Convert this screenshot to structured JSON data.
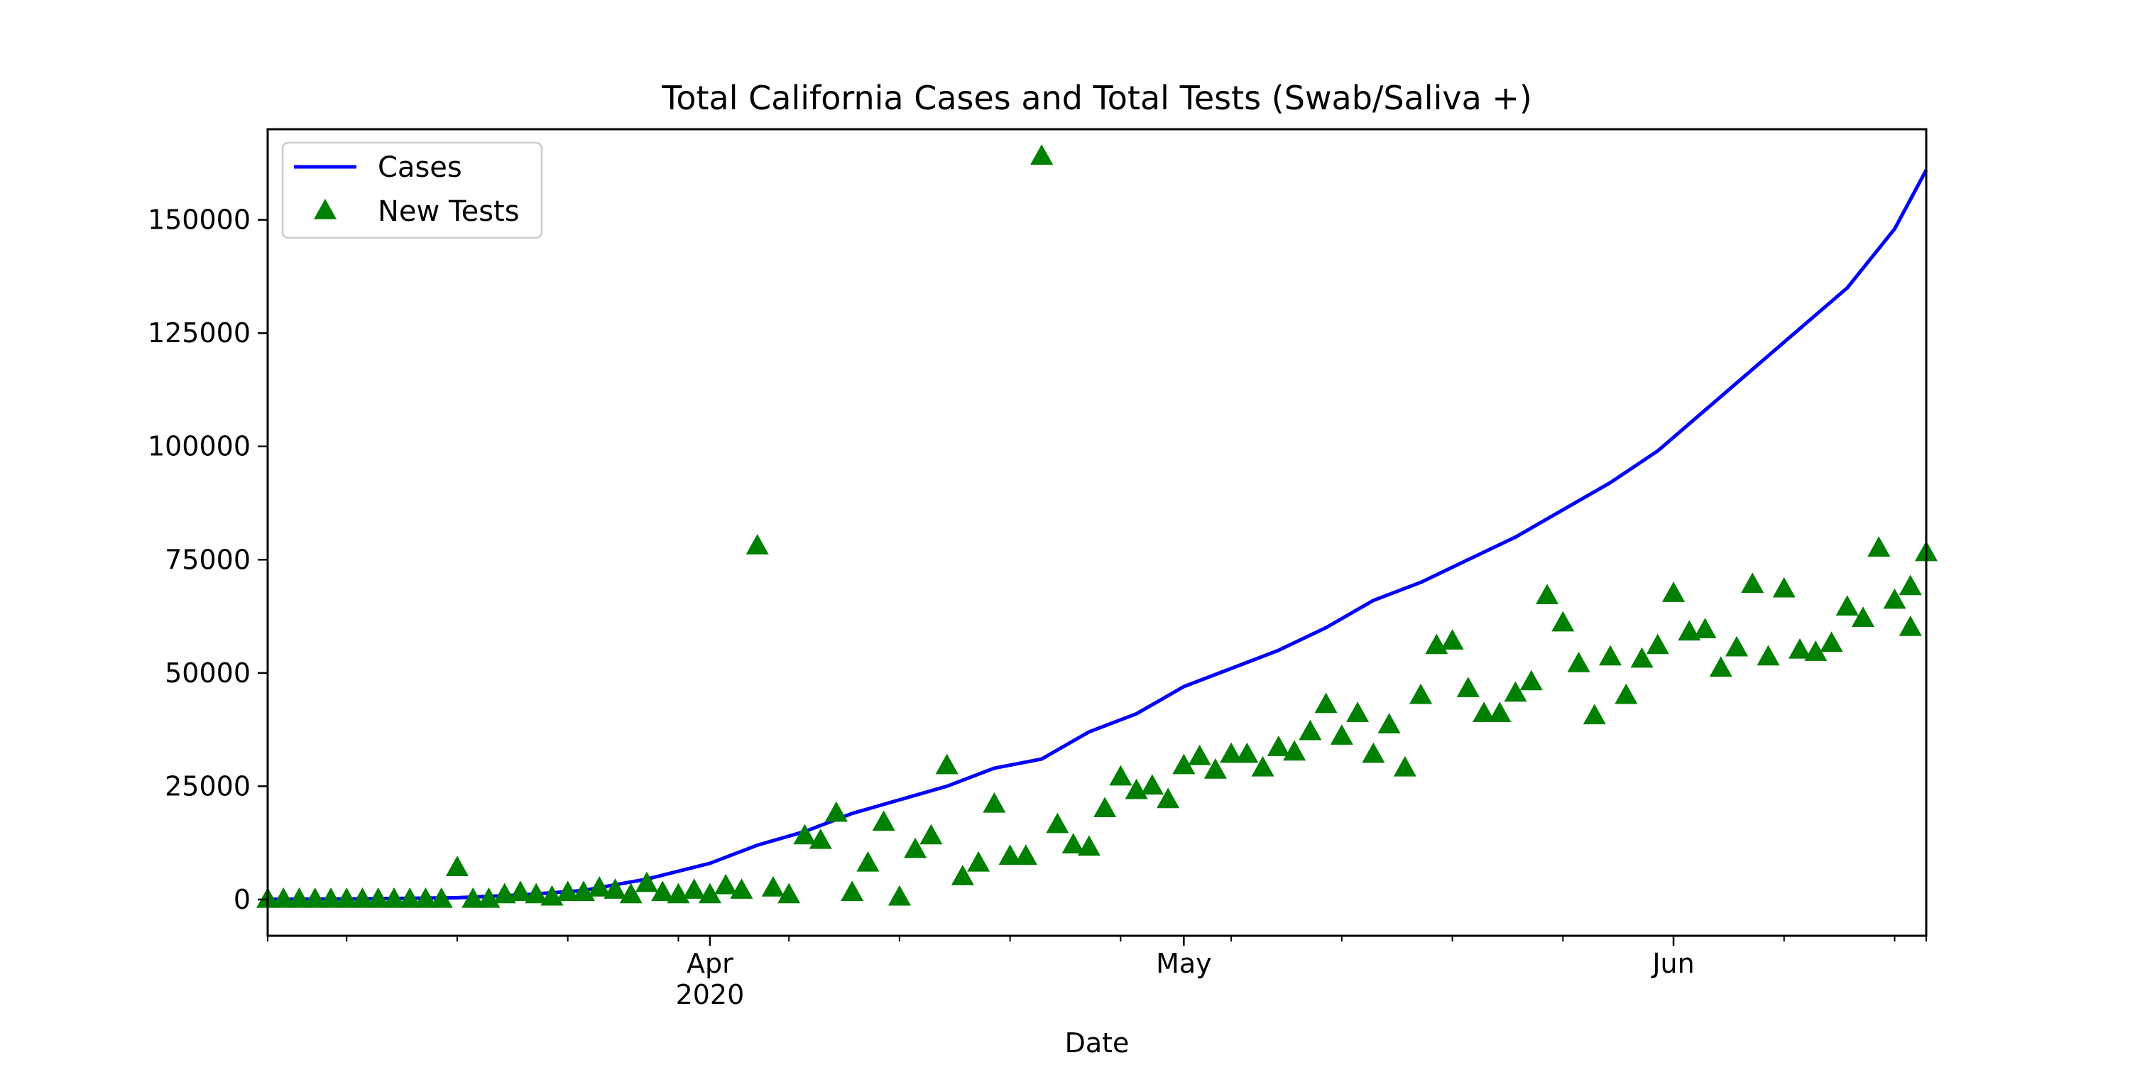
{
  "chart_data": {
    "type": "line",
    "title": "Total California Cases and Total Tests (Swab/Saliva +)",
    "xlabel": "Date",
    "ylabel": "",
    "x_start": "2020-03-04",
    "x_end": "2020-06-17",
    "xlim": [
      "2020-03-04",
      "2020-06-17"
    ],
    "ylim": [
      -8000,
      170000
    ],
    "yticks": [
      0,
      25000,
      50000,
      75000,
      100000,
      125000,
      150000
    ],
    "ytick_labels": [
      "0",
      "25000",
      "50000",
      "75000",
      "100000",
      "125000",
      "150000"
    ],
    "x_major_ticks": [
      {
        "date": "2020-04-01",
        "label": "Apr",
        "sublabel": "2020"
      },
      {
        "date": "2020-05-01",
        "label": "May",
        "sublabel": ""
      },
      {
        "date": "2020-06-01",
        "label": "Jun",
        "sublabel": ""
      }
    ],
    "x_minor_ticks": [
      "2020-03-04",
      "2020-03-09",
      "2020-03-16",
      "2020-03-23",
      "2020-03-30",
      "2020-04-06",
      "2020-04-13",
      "2020-04-20",
      "2020-04-27",
      "2020-05-04",
      "2020-05-11",
      "2020-05-18",
      "2020-05-25",
      "2020-06-08",
      "2020-06-15",
      "2020-06-17"
    ],
    "legend": {
      "position": "top-left"
    },
    "series": [
      {
        "name": "Cases",
        "style": "line",
        "color": "#0000ff",
        "points": [
          [
            "2020-03-04",
            50
          ],
          [
            "2020-03-10",
            150
          ],
          [
            "2020-03-16",
            400
          ],
          [
            "2020-03-20",
            1000
          ],
          [
            "2020-03-24",
            2000
          ],
          [
            "2020-03-28",
            4500
          ],
          [
            "2020-04-01",
            8000
          ],
          [
            "2020-04-04",
            12000
          ],
          [
            "2020-04-07",
            15000
          ],
          [
            "2020-04-10",
            19000
          ],
          [
            "2020-04-13",
            22000
          ],
          [
            "2020-04-16",
            25000
          ],
          [
            "2020-04-19",
            29000
          ],
          [
            "2020-04-22",
            31000
          ],
          [
            "2020-04-25",
            37000
          ],
          [
            "2020-04-28",
            41000
          ],
          [
            "2020-05-01",
            47000
          ],
          [
            "2020-05-04",
            51000
          ],
          [
            "2020-05-07",
            55000
          ],
          [
            "2020-05-10",
            60000
          ],
          [
            "2020-05-13",
            66000
          ],
          [
            "2020-05-16",
            70000
          ],
          [
            "2020-05-19",
            75000
          ],
          [
            "2020-05-22",
            80000
          ],
          [
            "2020-05-25",
            86000
          ],
          [
            "2020-05-28",
            92000
          ],
          [
            "2020-05-31",
            99000
          ],
          [
            "2020-06-03",
            108000
          ],
          [
            "2020-06-06",
            117000
          ],
          [
            "2020-06-09",
            126000
          ],
          [
            "2020-06-12",
            135000
          ],
          [
            "2020-06-15",
            148000
          ],
          [
            "2020-06-17",
            161000
          ]
        ]
      },
      {
        "name": "New Tests",
        "style": "marker",
        "marker": "triangle",
        "color": "#008000",
        "points": [
          [
            "2020-03-04",
            0
          ],
          [
            "2020-03-05",
            0
          ],
          [
            "2020-03-06",
            0
          ],
          [
            "2020-03-07",
            0
          ],
          [
            "2020-03-08",
            0
          ],
          [
            "2020-03-09",
            0
          ],
          [
            "2020-03-10",
            0
          ],
          [
            "2020-03-11",
            0
          ],
          [
            "2020-03-12",
            0
          ],
          [
            "2020-03-13",
            0
          ],
          [
            "2020-03-14",
            0
          ],
          [
            "2020-03-15",
            0
          ],
          [
            "2020-03-16",
            7000
          ],
          [
            "2020-03-17",
            0
          ],
          [
            "2020-03-18",
            0
          ],
          [
            "2020-03-19",
            1000
          ],
          [
            "2020-03-20",
            1500
          ],
          [
            "2020-03-21",
            1000
          ],
          [
            "2020-03-22",
            500
          ],
          [
            "2020-03-23",
            1500
          ],
          [
            "2020-03-24",
            1500
          ],
          [
            "2020-03-25",
            2500
          ],
          [
            "2020-03-26",
            2000
          ],
          [
            "2020-03-27",
            1000
          ],
          [
            "2020-03-28",
            3500
          ],
          [
            "2020-03-29",
            1500
          ],
          [
            "2020-03-30",
            1000
          ],
          [
            "2020-03-31",
            2000
          ],
          [
            "2020-04-01",
            1000
          ],
          [
            "2020-04-02",
            3000
          ],
          [
            "2020-04-03",
            2000
          ],
          [
            "2020-04-04",
            78000
          ],
          [
            "2020-04-05",
            2500
          ],
          [
            "2020-04-06",
            1000
          ],
          [
            "2020-04-07",
            14000
          ],
          [
            "2020-04-08",
            13000
          ],
          [
            "2020-04-09",
            19000
          ],
          [
            "2020-04-10",
            1500
          ],
          [
            "2020-04-11",
            8000
          ],
          [
            "2020-04-12",
            17000
          ],
          [
            "2020-04-13",
            500
          ],
          [
            "2020-04-14",
            11000
          ],
          [
            "2020-04-15",
            14000
          ],
          [
            "2020-04-16",
            29500
          ],
          [
            "2020-04-17",
            5000
          ],
          [
            "2020-04-18",
            8000
          ],
          [
            "2020-04-19",
            21000
          ],
          [
            "2020-04-20",
            9500
          ],
          [
            "2020-04-21",
            9500
          ],
          [
            "2020-04-22",
            164000
          ],
          [
            "2020-04-23",
            16500
          ],
          [
            "2020-04-24",
            12000
          ],
          [
            "2020-04-25",
            11500
          ],
          [
            "2020-04-26",
            20000
          ],
          [
            "2020-04-27",
            27000
          ],
          [
            "2020-04-28",
            24000
          ],
          [
            "2020-04-29",
            25000
          ],
          [
            "2020-04-30",
            22000
          ],
          [
            "2020-05-01",
            29500
          ],
          [
            "2020-05-02",
            31500
          ],
          [
            "2020-05-03",
            28500
          ],
          [
            "2020-05-04",
            32000
          ],
          [
            "2020-05-05",
            32000
          ],
          [
            "2020-05-06",
            29000
          ],
          [
            "2020-05-07",
            33500
          ],
          [
            "2020-05-08",
            32500
          ],
          [
            "2020-05-09",
            37000
          ],
          [
            "2020-05-10",
            43000
          ],
          [
            "2020-05-11",
            36000
          ],
          [
            "2020-05-12",
            41000
          ],
          [
            "2020-05-13",
            32000
          ],
          [
            "2020-05-14",
            38500
          ],
          [
            "2020-05-15",
            29000
          ],
          [
            "2020-05-16",
            45000
          ],
          [
            "2020-05-17",
            56000
          ],
          [
            "2020-05-18",
            57000
          ],
          [
            "2020-05-19",
            46500
          ],
          [
            "2020-05-20",
            41000
          ],
          [
            "2020-05-21",
            41000
          ],
          [
            "2020-05-22",
            45500
          ],
          [
            "2020-05-23",
            48000
          ],
          [
            "2020-05-24",
            67000
          ],
          [
            "2020-05-25",
            61000
          ],
          [
            "2020-05-26",
            52000
          ],
          [
            "2020-05-27",
            40500
          ],
          [
            "2020-05-28",
            53500
          ],
          [
            "2020-05-29",
            45000
          ],
          [
            "2020-05-30",
            53000
          ],
          [
            "2020-05-31",
            56000
          ],
          [
            "2020-06-01",
            67500
          ],
          [
            "2020-06-02",
            59000
          ],
          [
            "2020-06-03",
            59500
          ],
          [
            "2020-06-04",
            51000
          ],
          [
            "2020-06-05",
            55500
          ],
          [
            "2020-06-06",
            69500
          ],
          [
            "2020-06-07",
            53500
          ],
          [
            "2020-06-08",
            68500
          ],
          [
            "2020-06-09",
            55000
          ],
          [
            "2020-06-10",
            54500
          ],
          [
            "2020-06-11",
            56500
          ],
          [
            "2020-06-12",
            64500
          ],
          [
            "2020-06-13",
            62000
          ],
          [
            "2020-06-14",
            77500
          ],
          [
            "2020-06-15",
            66000
          ],
          [
            "2020-06-16",
            69000
          ],
          [
            "2020-06-16",
            60000
          ],
          [
            "2020-06-17",
            76500
          ]
        ]
      }
    ]
  }
}
